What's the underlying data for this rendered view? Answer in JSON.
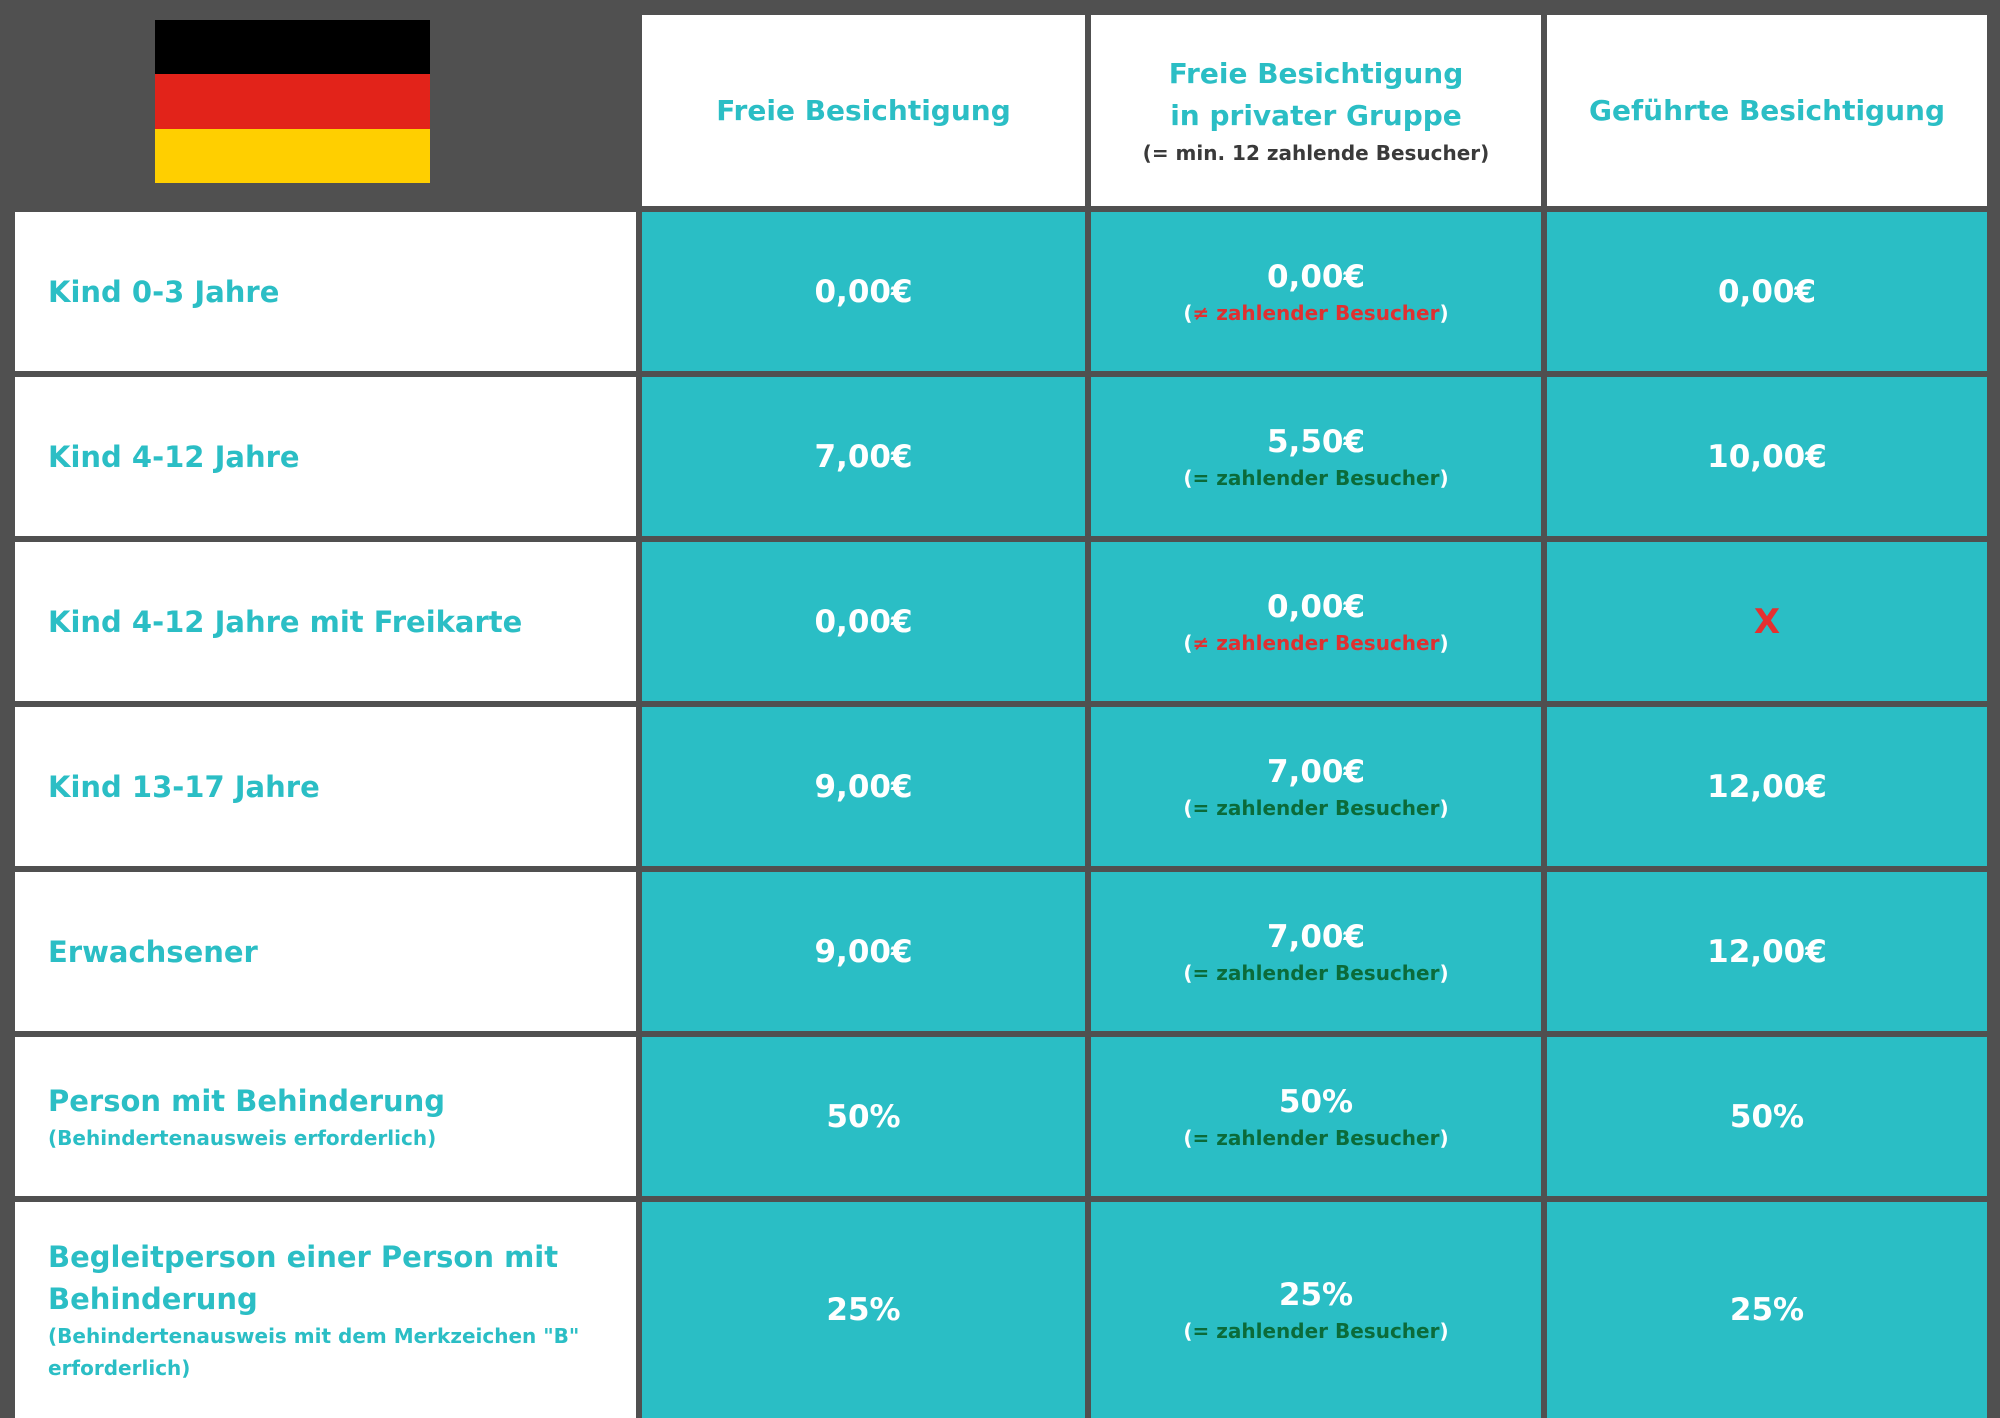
{
  "colors": {
    "background": "#505050",
    "teal": "#2abec5",
    "teal_text": "#2bbec5",
    "white": "#ffffff",
    "note_green": "#0b6b3a",
    "note_red": "#e03030",
    "flag_black": "#000000",
    "flag_red": "#e2231a",
    "flag_gold": "#ffcf00"
  },
  "flag": {
    "icon": "germany-flag-icon"
  },
  "headers": [
    {
      "title1": "Freie Besichtigung",
      "title2": "",
      "note": ""
    },
    {
      "title1": "Freie Besichtigung",
      "title2": "in privater Gruppe",
      "note": "(= min. 12 zahlende Besucher)"
    },
    {
      "title1": "Geführte Besichtigung",
      "title2": "",
      "note": ""
    }
  ],
  "rows": [
    {
      "label": "Kind 0-3 Jahre",
      "sub": "",
      "free": "0,00€",
      "group": "0,00€",
      "group_note_open": "(",
      "group_note": "≠ zahlender Besucher",
      "group_note_close": ")",
      "group_note_type": "neq",
      "guided": "0,00€"
    },
    {
      "label": "Kind 4-12 Jahre",
      "sub": "",
      "free": "7,00€",
      "group": "5,50€",
      "group_note_open": "(",
      "group_note": "= zahlender Besucher",
      "group_note_close": ")",
      "group_note_type": "ok",
      "guided": "10,00€"
    },
    {
      "label": "Kind 4-12 Jahre mit Freikarte",
      "sub": "",
      "free": "0,00€",
      "group": "0,00€",
      "group_note_open": "(",
      "group_note": "≠ zahlender Besucher",
      "group_note_close": ")",
      "group_note_type": "neq",
      "guided": "X"
    },
    {
      "label": "Kind 13-17 Jahre",
      "sub": "",
      "free": "9,00€",
      "group": "7,00€",
      "group_note_open": "(",
      "group_note": "= zahlender Besucher",
      "group_note_close": ")",
      "group_note_type": "ok",
      "guided": "12,00€"
    },
    {
      "label": "Erwachsener",
      "sub": "",
      "free": "9,00€",
      "group": "7,00€",
      "group_note_open": "(",
      "group_note": "= zahlender Besucher",
      "group_note_close": ")",
      "group_note_type": "ok",
      "guided": "12,00€"
    },
    {
      "label": "Person mit Behinderung",
      "sub": "(Behindertenausweis erforderlich)",
      "free": "50%",
      "group": "50%",
      "group_note_open": "(",
      "group_note": "= zahlender Besucher",
      "group_note_close": ")",
      "group_note_type": "ok",
      "guided": "50%"
    },
    {
      "label": "Begleitperson einer Person mit Behinderung",
      "sub": "(Behindertenausweis mit dem Merkzeichen \"B\" erforderlich)",
      "free": "25%",
      "group": "25%",
      "group_note_open": "(",
      "group_note": "= zahlender Besucher",
      "group_note_close": ")",
      "group_note_type": "ok",
      "guided": "25%"
    }
  ]
}
